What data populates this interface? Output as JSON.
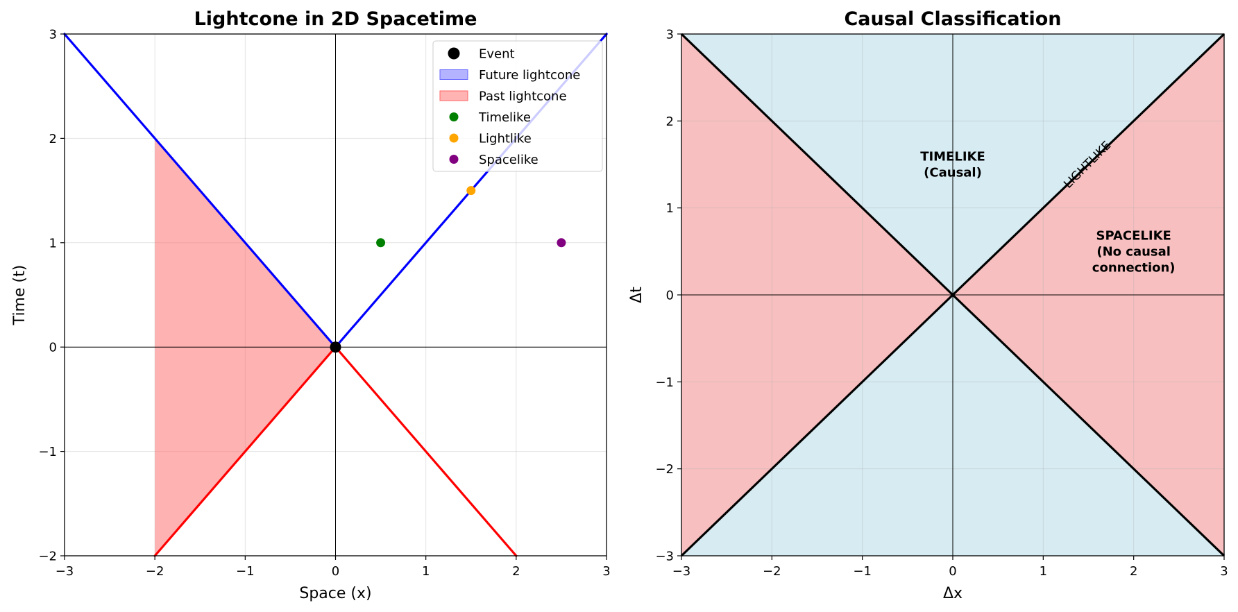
{
  "chart_data": [
    {
      "type": "line",
      "title": "Lightcone in 2D Spacetime",
      "xlabel": "Space (x)",
      "ylabel": "Time (t)",
      "xlim": [
        -3,
        3
      ],
      "ylim": [
        -2,
        3
      ],
      "xticks": [
        -3,
        -2,
        -1,
        0,
        1,
        2,
        3
      ],
      "yticks": [
        -2,
        -1,
        0,
        1,
        2,
        3
      ],
      "xtick_labels": [
        "−3",
        "−2",
        "−1",
        "0",
        "1",
        "2",
        "3"
      ],
      "ytick_labels": [
        "−2",
        "−1",
        "0",
        "1",
        "2",
        "3"
      ],
      "grid": true,
      "legend_position": "top-right",
      "lines": [
        {
          "color": "#0000ff",
          "x": [
            -3,
            0
          ],
          "y": [
            3,
            0
          ]
        },
        {
          "color": "#0000ff",
          "x": [
            0,
            3
          ],
          "y": [
            0,
            3
          ]
        },
        {
          "color": "#ff0000",
          "x": [
            -2,
            0
          ],
          "y": [
            -2,
            0
          ]
        },
        {
          "color": "#ff0000",
          "x": [
            0,
            2
          ],
          "y": [
            0,
            -2
          ]
        }
      ],
      "fills": [
        {
          "name": "Past lightcone",
          "color": "#ff6666",
          "opacity": 0.5,
          "x": [
            -2,
            -2,
            0,
            -2
          ],
          "y": [
            -2,
            2,
            0,
            -2
          ]
        }
      ],
      "points": [
        {
          "name": "Event",
          "x": 0,
          "y": 0,
          "color": "#000000"
        },
        {
          "name": "Timelike",
          "x": 0.5,
          "y": 1,
          "color": "#008000"
        },
        {
          "name": "Lightlike",
          "x": 1.5,
          "y": 1.5,
          "color": "#ffa500"
        },
        {
          "name": "Spacelike",
          "x": 2.5,
          "y": 1,
          "color": "#800080"
        }
      ],
      "legend": [
        {
          "label": "Event",
          "marker": "circle-large",
          "color": "#000000"
        },
        {
          "label": "Future lightcone",
          "marker": "patch",
          "color": "#b3b3ff",
          "edge": "#6666ff"
        },
        {
          "label": "Past lightcone",
          "marker": "patch",
          "color": "#ffb3b3",
          "edge": "#ff6666"
        },
        {
          "label": "Timelike",
          "marker": "circle",
          "color": "#008000"
        },
        {
          "label": "Lightlike",
          "marker": "circle",
          "color": "#ffa500"
        },
        {
          "label": "Spacelike",
          "marker": "circle",
          "color": "#800080"
        }
      ]
    },
    {
      "type": "area",
      "title": "Causal Classification",
      "xlabel": "Δx",
      "ylabel": "Δt",
      "xlim": [
        -3,
        3
      ],
      "ylim": [
        -3,
        3
      ],
      "xticks": [
        -3,
        -2,
        -1,
        0,
        1,
        2,
        3
      ],
      "yticks": [
        -3,
        -2,
        -1,
        0,
        1,
        2,
        3
      ],
      "xtick_labels": [
        "−3",
        "−2",
        "−1",
        "0",
        "1",
        "2",
        "3"
      ],
      "ytick_labels": [
        "−3",
        "−2",
        "−1",
        "0",
        "1",
        "2",
        "3"
      ],
      "grid": true,
      "timelike_color": "#add8e6",
      "spacelike_color": "#f08080",
      "lightcone_color": "#000000",
      "annotations": [
        {
          "lines": [
            "TIMELIKE",
            "(Causal)"
          ],
          "x": 0,
          "y": 1.5
        },
        {
          "lines": [
            "SPACELIKE",
            "(No causal",
            "connection)"
          ],
          "x": 2,
          "y": 0.5
        }
      ],
      "lightlike_label": {
        "text": "LIGHTLIKE",
        "x": 1.5,
        "y": 1.5,
        "rotation_deg": 45
      }
    }
  ]
}
